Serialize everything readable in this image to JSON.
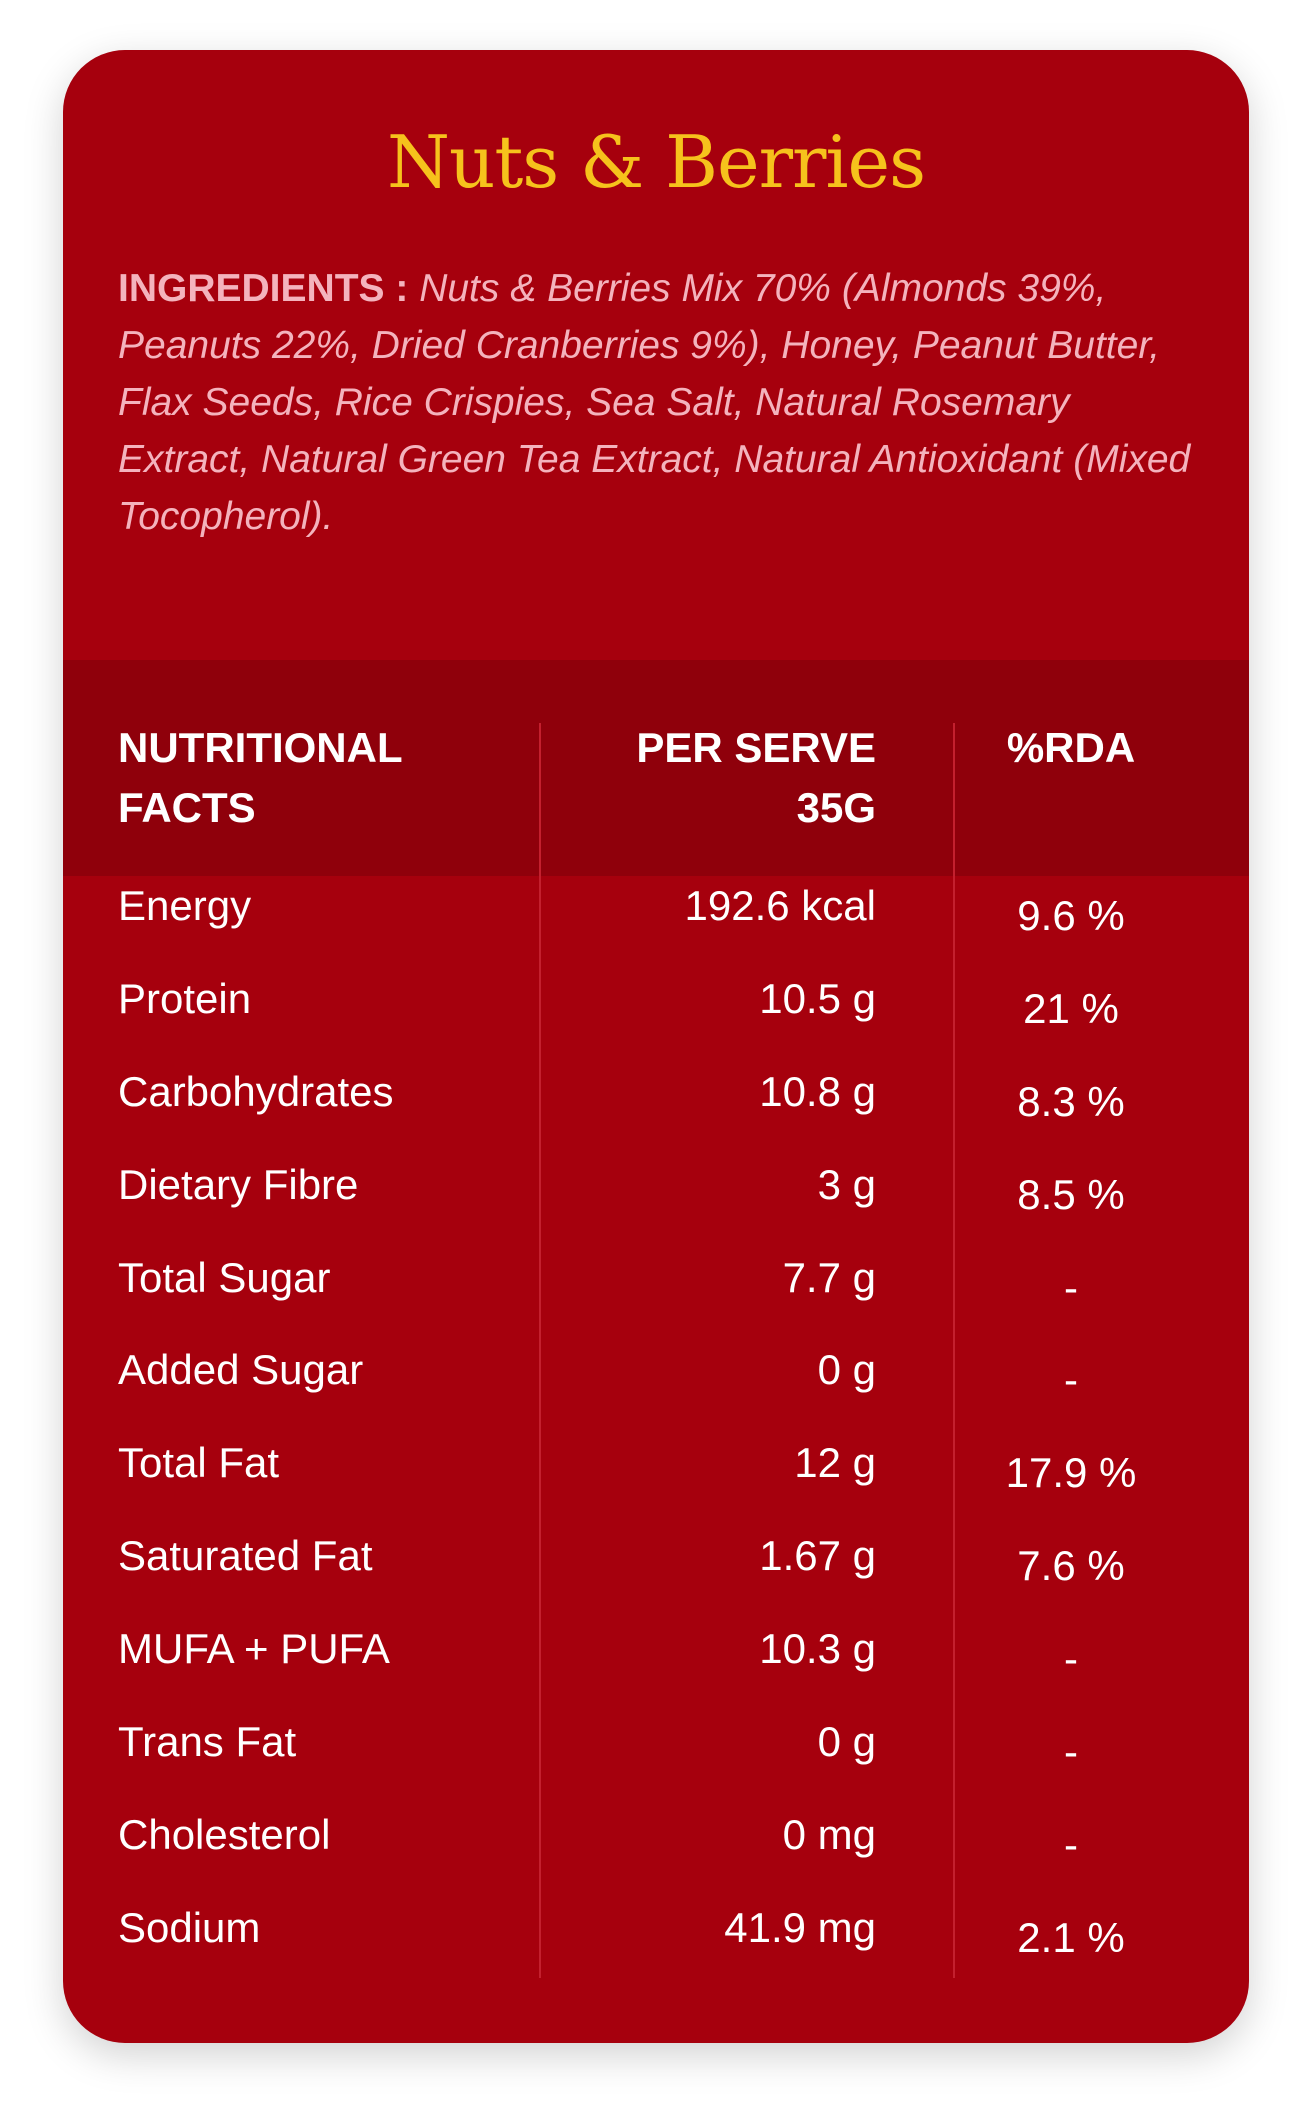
{
  "card": {
    "title": "Nuts & Berries",
    "ingredients_label": "INGREDIENTS :",
    "ingredients_text": "Nuts & Berries Mix 70% (Almonds 39%, Peanuts 22%, Dried Cranberries 9%), Honey, Peanut Butter, Flax Seeds, Rice Crispies, Sea Salt, Natural Rosemary Extract, Natural Green Tea Extract, Natural Antioxidant (Mixed Tocopherol)."
  },
  "table": {
    "headers": {
      "col1_line1": "NUTRITIONAL",
      "col1_line2": "FACTS",
      "col2_line1": "PER SERVE",
      "col2_line2": "35G",
      "col3": "%RDA"
    },
    "rows": [
      {
        "name": "Energy",
        "value": "192.6 kcal",
        "rda": "9.6 %"
      },
      {
        "name": "Protein",
        "value": "10.5 g",
        "rda": "21 %"
      },
      {
        "name": "Carbohydrates",
        "value": "10.8 g",
        "rda": "8.3 %"
      },
      {
        "name": "Dietary Fibre",
        "value": "3 g",
        "rda": "8.5 %"
      },
      {
        "name": "Total Sugar",
        "value": "7.7 g",
        "rda": "-"
      },
      {
        "name": "Added Sugar",
        "value": "0 g",
        "rda": "-"
      },
      {
        "name": "Total Fat",
        "value": "12 g",
        "rda": "17.9 %"
      },
      {
        "name": "Saturated Fat",
        "value": "1.67 g",
        "rda": "7.6 %"
      },
      {
        "name": "MUFA + PUFA",
        "value": "10.3 g",
        "rda": "-"
      },
      {
        "name": "Trans Fat",
        "value": "0 g",
        "rda": "-"
      },
      {
        "name": "Cholesterol",
        "value": "0 mg",
        "rda": "-"
      },
      {
        "name": "Sodium",
        "value": "41.9 mg",
        "rda": "2.1 %"
      }
    ]
  },
  "colors": {
    "card_background": "#a6000d",
    "header_background": "#8f000b",
    "title": "#f6c21c",
    "ingredients_text": "#f4b3bd",
    "table_text": "#ffffff"
  }
}
